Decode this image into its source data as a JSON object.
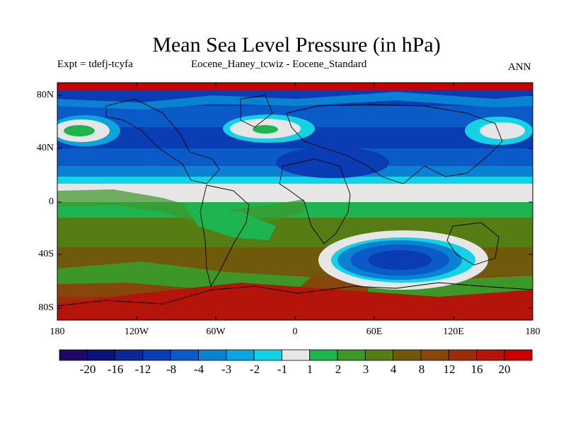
{
  "header": {
    "title": "Mean Sea Level Pressure (in hPa)",
    "expt": "Expt = tdefj-tcyfa",
    "comparison": "Eocene_Haney_tcwiz - Eocene_Standard",
    "season": "ANN"
  },
  "axes": {
    "y_labels": [
      "80N",
      "40N",
      "0",
      "40S",
      "80S"
    ],
    "x_labels": [
      "180",
      "120W",
      "60W",
      "0",
      "60E",
      "120E",
      "180"
    ]
  },
  "colorbar": {
    "colors": [
      "#1e0a64",
      "#0a1478",
      "#0a2896",
      "#0a3cb4",
      "#0a5ac8",
      "#0a82d2",
      "#0aa5dc",
      "#14d2e6",
      "#e6e6e6",
      "#1eb450",
      "#3c9628",
      "#557d14",
      "#6e5a0a",
      "#87460a",
      "#9c2d0a",
      "#b4140a",
      "#c80000"
    ],
    "labels": [
      "-20",
      "-16",
      "-12",
      "-8",
      "-4",
      "-3",
      "-2",
      "-1",
      "1",
      "2",
      "3",
      "4",
      "8",
      "12",
      "16",
      "20"
    ]
  }
}
